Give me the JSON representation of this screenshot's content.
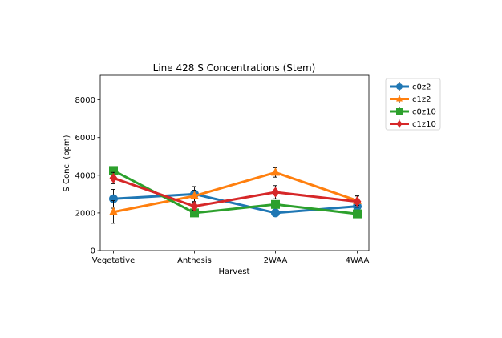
{
  "chart_data": {
    "type": "line",
    "title": "Line 428 S Concentrations (Stem)",
    "xlabel": "Harvest",
    "ylabel": "S Conc. (ppm)",
    "categories": [
      "Vegetative",
      "Anthesis",
      "2WAA",
      "4WAA"
    ],
    "ylim": [
      0,
      9300
    ],
    "yticks": [
      0,
      2000,
      4000,
      6000,
      8000
    ],
    "legend_position": "outside-right",
    "grid": false,
    "series": [
      {
        "name": "c0z2",
        "color": "#1f77b4",
        "marker": "circle",
        "values": [
          2750,
          3000,
          2000,
          2350
        ],
        "errors": [
          500,
          400,
          120,
          150
        ]
      },
      {
        "name": "c1z2",
        "color": "#ff7f0e",
        "marker": "triangle",
        "values": [
          2050,
          2900,
          4150,
          2650
        ],
        "errors": [
          600,
          300,
          250,
          250
        ]
      },
      {
        "name": "c0z10",
        "color": "#2ca02c",
        "marker": "square",
        "values": [
          4250,
          2000,
          2450,
          1950
        ],
        "errors": [
          200,
          150,
          200,
          150
        ]
      },
      {
        "name": "c1z10",
        "color": "#d62728",
        "marker": "diamond",
        "values": [
          3850,
          2350,
          3100,
          2600
        ],
        "errors": [
          300,
          200,
          350,
          300
        ]
      }
    ]
  }
}
